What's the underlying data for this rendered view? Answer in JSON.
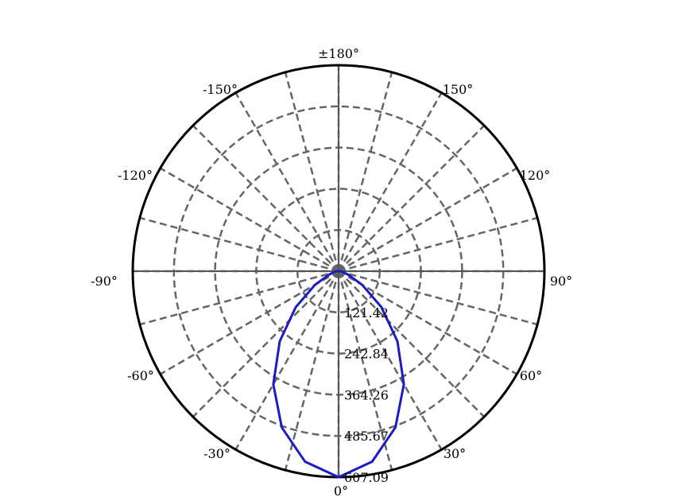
{
  "chart_data": {
    "type": "polar",
    "title": "",
    "angle_labels": [
      {
        "angle": 180,
        "label": "±180°"
      },
      {
        "angle": 150,
        "label": "150°"
      },
      {
        "angle": 120,
        "label": "120°"
      },
      {
        "angle": 90,
        "label": "90°"
      },
      {
        "angle": 60,
        "label": "60°"
      },
      {
        "angle": 30,
        "label": "30°"
      },
      {
        "angle": 0,
        "label": "0°"
      },
      {
        "angle": -30,
        "label": "-30°"
      },
      {
        "angle": -60,
        "label": "-60°"
      },
      {
        "angle": -90,
        "label": "-90°"
      },
      {
        "angle": -120,
        "label": "-120°"
      },
      {
        "angle": -150,
        "label": "-150°"
      }
    ],
    "radial_ticks": [
      121.42,
      242.84,
      364.26,
      485.67,
      607.09
    ],
    "radial_tick_labels": [
      "121.42",
      "242.84",
      "364.26",
      "485.67",
      "607.09"
    ],
    "r_max": 607.09,
    "angular_grid_step_deg": 15,
    "grid": true,
    "colors": {
      "curve": "#1c1cc4",
      "grid": "#666666",
      "outer_circle": "#000000"
    },
    "series": [
      {
        "theta_deg": [
          -90,
          -80,
          -70,
          -60,
          -50,
          -40,
          -30,
          -20,
          -10,
          0,
          10,
          20,
          30,
          40,
          50,
          60,
          70,
          80,
          90
        ],
        "r": [
          5,
          12,
          30,
          80,
          165,
          270,
          385,
          490,
          570,
          607.09,
          570,
          490,
          385,
          270,
          165,
          80,
          30,
          12,
          5
        ]
      }
    ]
  }
}
